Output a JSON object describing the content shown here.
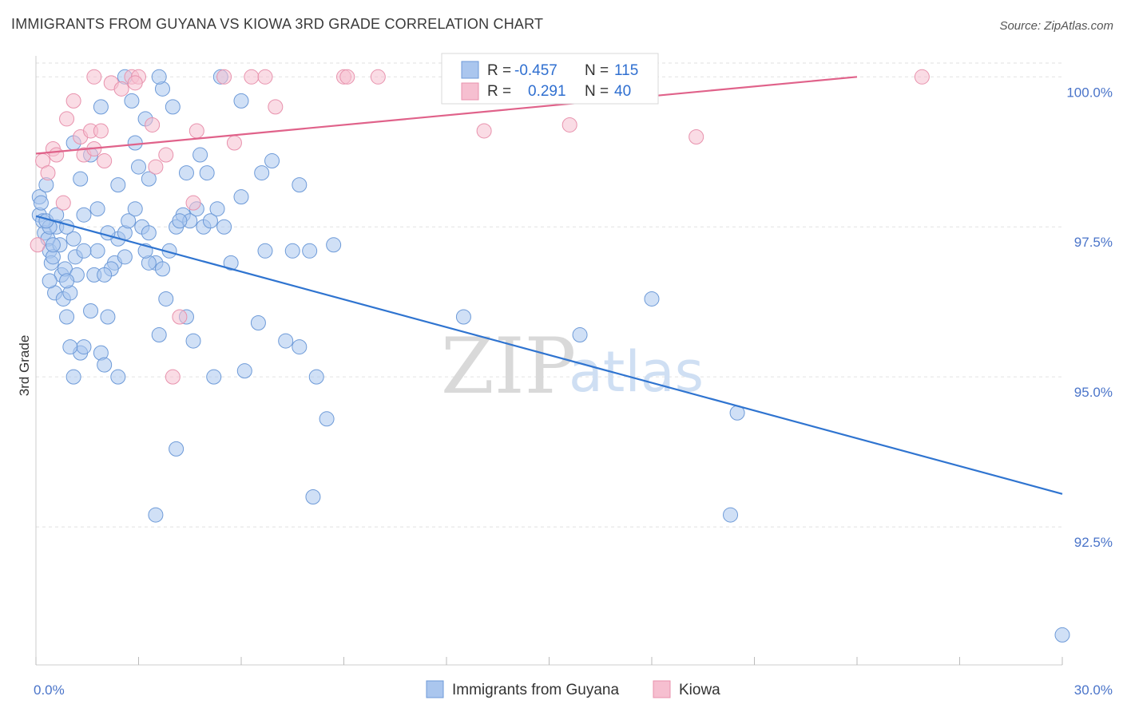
{
  "title": "IMMIGRANTS FROM GUYANA VS KIOWA 3RD GRADE CORRELATION CHART",
  "source": "Source: ZipAtlas.com",
  "watermark": {
    "zip": "ZIP",
    "atlas": "atlas"
  },
  "colors": {
    "blue_fill": "#aac6ee",
    "blue_stroke": "#6d9ad8",
    "blue_line": "#2f74d0",
    "pink_fill": "#f6bfd0",
    "pink_stroke": "#e892ad",
    "pink_line": "#e0628a",
    "tick_text": "#4a74c9",
    "grid": "#e2e2e2"
  },
  "legend": {
    "rows": [
      {
        "r_label": "R = ",
        "r_value": "-0.457",
        "n_label": "N = ",
        "n_value": "115"
      },
      {
        "r_label": "R = ",
        "r_value": "0.291",
        "n_label": "N = ",
        "n_value": "40"
      }
    ]
  },
  "chart_data": {
    "type": "scatter",
    "title": "IMMIGRANTS FROM GUYANA VS KIOWA 3RD GRADE CORRELATION CHART",
    "xlabel": "",
    "ylabel": "3rd Grade",
    "xlim": [
      0,
      30
    ],
    "ylim": [
      90.2,
      100.35
    ],
    "x_tick_labels": [
      {
        "value": 0,
        "label": "0.0%"
      },
      {
        "value": 30,
        "label": "30.0%"
      }
    ],
    "y_tick_labels": [
      {
        "value": 100,
        "label": "100.0%"
      },
      {
        "value": 97.5,
        "label": "97.5%"
      },
      {
        "value": 95,
        "label": "95.0%"
      },
      {
        "value": 92.5,
        "label": "92.5%"
      }
    ],
    "series": [
      {
        "name": "Immigrants from Guyana",
        "color": "#aac6ee",
        "trend": {
          "x": [
            0,
            30
          ],
          "y": [
            97.68,
            93.05
          ]
        },
        "points": [
          [
            0.1,
            98.0
          ],
          [
            0.1,
            97.7
          ],
          [
            0.15,
            97.9
          ],
          [
            0.2,
            97.6
          ],
          [
            0.25,
            97.4
          ],
          [
            0.3,
            98.2
          ],
          [
            0.35,
            97.3
          ],
          [
            0.4,
            97.1
          ],
          [
            0.45,
            96.9
          ],
          [
            0.5,
            97.0
          ],
          [
            0.55,
            96.4
          ],
          [
            0.6,
            97.5
          ],
          [
            0.7,
            97.2
          ],
          [
            0.75,
            96.7
          ],
          [
            0.8,
            96.3
          ],
          [
            0.85,
            96.8
          ],
          [
            0.9,
            96.0
          ],
          [
            1.0,
            96.4
          ],
          [
            1.1,
            97.3
          ],
          [
            1.15,
            97.0
          ],
          [
            1.2,
            96.7
          ],
          [
            1.3,
            95.4
          ],
          [
            1.4,
            95.5
          ],
          [
            1.6,
            96.1
          ],
          [
            1.7,
            96.7
          ],
          [
            1.8,
            97.1
          ],
          [
            1.9,
            95.4
          ],
          [
            2.0,
            95.2
          ],
          [
            2.1,
            96.0
          ],
          [
            2.3,
            96.9
          ],
          [
            2.4,
            97.3
          ],
          [
            2.6,
            97.4
          ],
          [
            2.7,
            97.6
          ],
          [
            2.9,
            97.8
          ],
          [
            3.1,
            97.5
          ],
          [
            3.3,
            97.4
          ],
          [
            3.5,
            96.9
          ],
          [
            3.7,
            96.8
          ],
          [
            3.9,
            97.1
          ],
          [
            4.1,
            97.5
          ],
          [
            4.3,
            97.7
          ],
          [
            4.5,
            97.6
          ],
          [
            4.7,
            97.8
          ],
          [
            4.9,
            97.5
          ],
          [
            5.1,
            97.6
          ],
          [
            5.3,
            97.8
          ],
          [
            5.5,
            97.5
          ],
          [
            0.4,
            96.6
          ],
          [
            1.1,
            95.0
          ],
          [
            2.4,
            95.0
          ],
          [
            3.6,
            95.7
          ],
          [
            4.4,
            96.0
          ],
          [
            4.6,
            95.6
          ],
          [
            5.2,
            95.0
          ],
          [
            6.1,
            95.1
          ],
          [
            6.5,
            95.9
          ],
          [
            7.3,
            95.6
          ],
          [
            7.7,
            95.5
          ],
          [
            8.2,
            95.0
          ],
          [
            8.5,
            94.3
          ],
          [
            8.1,
            93.0
          ],
          [
            4.1,
            93.8
          ],
          [
            3.5,
            92.7
          ],
          [
            2.6,
            97.0
          ],
          [
            3.3,
            96.9
          ],
          [
            1.4,
            97.1
          ],
          [
            1.6,
            98.7
          ],
          [
            1.3,
            98.3
          ],
          [
            2.4,
            98.2
          ],
          [
            3.0,
            98.5
          ],
          [
            3.3,
            98.3
          ],
          [
            4.4,
            98.4
          ],
          [
            4.8,
            98.7
          ],
          [
            5.0,
            98.4
          ],
          [
            6.0,
            98.0
          ],
          [
            6.6,
            98.4
          ],
          [
            6.9,
            98.6
          ],
          [
            7.7,
            98.2
          ],
          [
            1.1,
            98.9
          ],
          [
            2.9,
            98.9
          ],
          [
            1.9,
            99.5
          ],
          [
            2.8,
            99.6
          ],
          [
            3.2,
            99.3
          ],
          [
            4.0,
            99.5
          ],
          [
            3.7,
            99.8
          ],
          [
            2.6,
            100.0
          ],
          [
            3.6,
            100.0
          ],
          [
            5.4,
            100.0
          ],
          [
            6.0,
            99.6
          ],
          [
            0.4,
            97.5
          ],
          [
            0.9,
            97.5
          ],
          [
            0.3,
            97.6
          ],
          [
            1.4,
            97.7
          ],
          [
            2.1,
            97.4
          ],
          [
            0.6,
            97.7
          ],
          [
            6.7,
            97.1
          ],
          [
            7.5,
            97.1
          ],
          [
            8.0,
            97.1
          ],
          [
            8.7,
            97.2
          ],
          [
            5.7,
            96.9
          ],
          [
            3.8,
            96.3
          ],
          [
            12.5,
            96.0
          ],
          [
            15.9,
            95.7
          ],
          [
            18.0,
            96.3
          ],
          [
            20.5,
            94.4
          ],
          [
            20.3,
            92.7
          ],
          [
            30.0,
            90.7
          ],
          [
            0.9,
            96.6
          ],
          [
            2.2,
            96.8
          ],
          [
            1.0,
            95.5
          ],
          [
            4.2,
            97.6
          ],
          [
            1.8,
            97.8
          ],
          [
            0.5,
            97.2
          ],
          [
            2.0,
            96.7
          ],
          [
            3.2,
            97.1
          ]
        ]
      },
      {
        "name": "Kiowa",
        "color": "#f6bfd0",
        "trend": {
          "x": [
            0,
            24
          ],
          "y": [
            98.72,
            100.0
          ]
        },
        "points": [
          [
            0.05,
            97.2
          ],
          [
            0.2,
            98.6
          ],
          [
            0.35,
            98.4
          ],
          [
            0.5,
            98.8
          ],
          [
            0.6,
            98.7
          ],
          [
            0.8,
            97.9
          ],
          [
            0.9,
            99.3
          ],
          [
            1.1,
            99.6
          ],
          [
            1.3,
            99.0
          ],
          [
            1.4,
            98.7
          ],
          [
            1.6,
            99.1
          ],
          [
            1.7,
            98.8
          ],
          [
            1.9,
            99.1
          ],
          [
            2.0,
            98.6
          ],
          [
            2.2,
            99.9
          ],
          [
            2.5,
            99.8
          ],
          [
            2.8,
            100.0
          ],
          [
            3.0,
            100.0
          ],
          [
            3.4,
            99.2
          ],
          [
            3.5,
            98.5
          ],
          [
            3.8,
            98.7
          ],
          [
            4.2,
            96.0
          ],
          [
            4.6,
            97.9
          ],
          [
            4.7,
            99.1
          ],
          [
            4.0,
            95.0
          ],
          [
            5.5,
            100.0
          ],
          [
            5.8,
            98.9
          ],
          [
            6.3,
            100.0
          ],
          [
            6.7,
            100.0
          ],
          [
            7.0,
            99.5
          ],
          [
            9.0,
            100.0
          ],
          [
            9.1,
            100.0
          ],
          [
            10.0,
            100.0
          ],
          [
            13.1,
            99.1
          ],
          [
            15.0,
            100.0
          ],
          [
            15.6,
            99.2
          ],
          [
            19.3,
            99.0
          ],
          [
            25.9,
            100.0
          ],
          [
            1.7,
            100.0
          ],
          [
            2.9,
            99.9
          ]
        ]
      }
    ],
    "legend_position": "top-center",
    "grid": true
  }
}
